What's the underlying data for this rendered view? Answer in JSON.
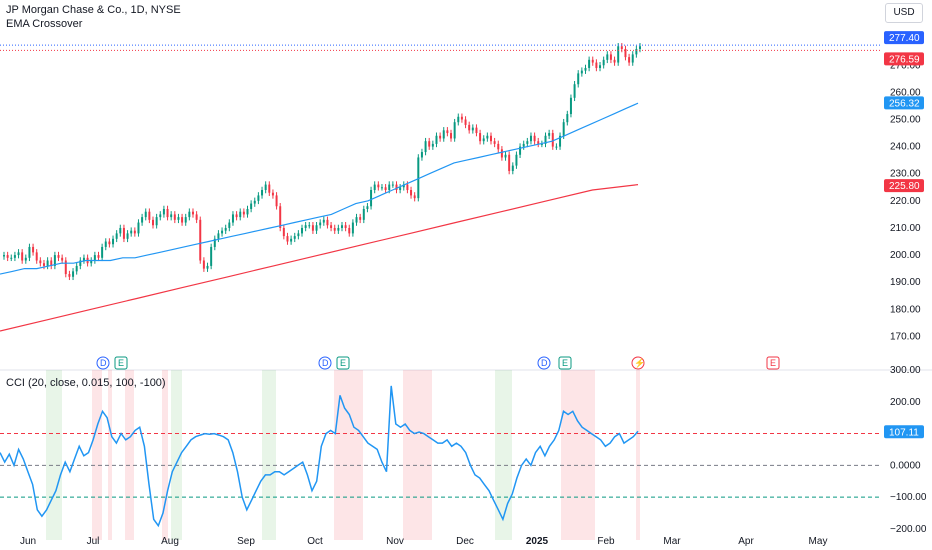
{
  "header": {
    "title": "JP Morgan Chase & Co., 1D, NYSE",
    "indicator": "EMA Crossover",
    "currency": "USD",
    "cci_label": "CCI (20, close, 0.015, 100, -100)"
  },
  "chart_data": [
    {
      "type": "candlestick",
      "title": "JP Morgan Chase & Co., 1D, NYSE",
      "y_axis_ticks": [
        "170.00",
        "180.00",
        "190.00",
        "200.00",
        "210.00",
        "220.00",
        "230.00",
        "240.00",
        "250.00",
        "260.00",
        "270.00"
      ],
      "ylim": [
        165,
        283
      ],
      "x_axis_ticks": [
        "Jun",
        "Jul",
        "Aug",
        "Sep",
        "Oct",
        "Nov",
        "Dec",
        "2025",
        "Feb",
        "Mar",
        "Apr",
        "May"
      ],
      "price_tags": [
        {
          "label": "277.40",
          "value": 277.4,
          "color": "#2962ff"
        },
        {
          "label": "276.59",
          "value": 276.59,
          "color": "#f23645"
        },
        {
          "label": "256.32",
          "value": 256.32,
          "color": "#2196f3"
        },
        {
          "label": "225.80",
          "value": 225.8,
          "color": "#f23645"
        }
      ],
      "closes": [
        200,
        199,
        199,
        200,
        201,
        198,
        199,
        203,
        201,
        198,
        197,
        196,
        198,
        196,
        200,
        199,
        198,
        193,
        192,
        194,
        196,
        198,
        199,
        197,
        198,
        200,
        199,
        203,
        205,
        204,
        206,
        208,
        210,
        206,
        208,
        209,
        208,
        212,
        214,
        216,
        213,
        211,
        214,
        215,
        217,
        214,
        215,
        213,
        214,
        212,
        214,
        216,
        215,
        213,
        198,
        195,
        196,
        203,
        206,
        208,
        209,
        210,
        212,
        215,
        214,
        216,
        215,
        217,
        219,
        220,
        222,
        224,
        226,
        223,
        222,
        218,
        210,
        207,
        205,
        206,
        207,
        208,
        210,
        211,
        211,
        209,
        211,
        212,
        213,
        211,
        210,
        209,
        210,
        211,
        210,
        208,
        212,
        214,
        213,
        217,
        218,
        224,
        226,
        225,
        225,
        224,
        226,
        226,
        224,
        225,
        226,
        224,
        222,
        221,
        236,
        238,
        242,
        240,
        241,
        244,
        243,
        246,
        245,
        243,
        249,
        251,
        250,
        248,
        246,
        247,
        245,
        242,
        243,
        244,
        242,
        241,
        239,
        236,
        237,
        231,
        233,
        237,
        240,
        241,
        242,
        244,
        242,
        241,
        241,
        244,
        245,
        240,
        240,
        244,
        249,
        252,
        258,
        263,
        267,
        268,
        269,
        272,
        271,
        269,
        270,
        272,
        274,
        272,
        271,
        277,
        276,
        273,
        271,
        274,
        276,
        277
      ],
      "ema_fast": [
        193,
        194,
        195,
        195,
        196,
        197,
        197,
        198,
        198,
        198,
        199,
        199,
        200,
        201,
        202,
        203,
        204,
        205,
        206,
        207,
        208,
        209,
        210,
        211,
        212,
        213,
        214,
        215,
        217,
        219,
        220,
        222,
        224,
        226,
        228,
        230,
        232,
        234,
        235,
        236,
        237,
        238,
        239,
        240,
        241,
        242,
        244,
        246,
        248,
        250,
        252,
        254,
        256
      ],
      "ema_slow": [
        172,
        176,
        180,
        184,
        188,
        192,
        196,
        200,
        204,
        208,
        212,
        216,
        220,
        224,
        226
      ],
      "events": [
        {
          "label": "D",
          "kind": "dividend"
        },
        {
          "label": "E",
          "kind": "earnings"
        },
        {
          "label": "D",
          "kind": "dividend"
        },
        {
          "label": "E",
          "kind": "earnings"
        },
        {
          "label": "D",
          "kind": "dividend"
        },
        {
          "label": "E",
          "kind": "earnings"
        },
        {
          "label": "⚡",
          "kind": "split"
        },
        {
          "label": "E",
          "kind": "earnings-upcoming"
        }
      ]
    },
    {
      "type": "line",
      "title": "CCI (20, close, 0.015, 100, -100)",
      "y_axis_ticks": [
        "300.00",
        "200.00",
        "100.00",
        "0.0000",
        "−100.00",
        "−200.00"
      ],
      "ylim": [
        -235,
        300
      ],
      "levels": [
        100,
        0,
        -100
      ],
      "last_value_label": "107.11",
      "last_value": 107.11,
      "series": [
        {
          "values": [
            40,
            10,
            35,
            0,
            50,
            20,
            -20,
            -60,
            -140,
            -160,
            -140,
            -110,
            -80,
            -30,
            10,
            -20,
            20,
            60,
            30,
            40,
            80,
            130,
            170,
            150,
            90,
            70,
            100,
            80,
            90,
            110,
            120,
            60,
            -60,
            -170,
            -190,
            -150,
            -80,
            -20,
            10,
            40,
            60,
            80,
            90,
            95,
            100,
            98,
            100,
            95,
            90,
            80,
            40,
            -20,
            -100,
            -140,
            -110,
            -80,
            -50,
            -30,
            -30,
            -20,
            -20,
            -30,
            -20,
            -10,
            0,
            10,
            -30,
            -80,
            -50,
            60,
            100,
            110,
            100,
            220,
            180,
            160,
            120,
            110,
            90,
            70,
            60,
            50,
            10,
            -20,
            250,
            130,
            120,
            130,
            110,
            100,
            105,
            100,
            90,
            80,
            70,
            70,
            80,
            60,
            70,
            60,
            40,
            0,
            -30,
            -40,
            -60,
            -80,
            -110,
            -140,
            -170,
            -120,
            -90,
            -40,
            0,
            20,
            0,
            40,
            60,
            30,
            60,
            80,
            110,
            170,
            160,
            170,
            140,
            120,
            110,
            100,
            90,
            80,
            60,
            70,
            90,
            100,
            70,
            80,
            90,
            107
          ]
        }
      ]
    }
  ]
}
